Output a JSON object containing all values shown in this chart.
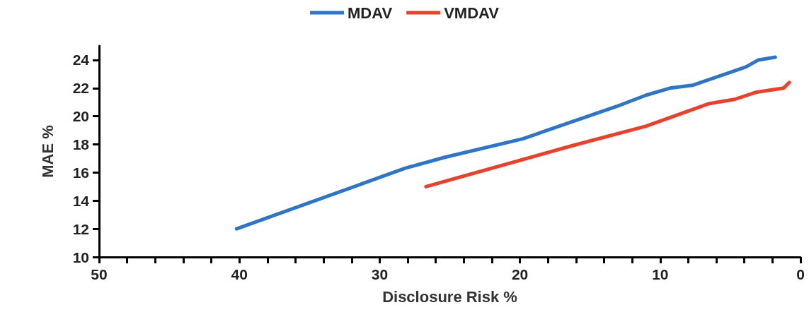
{
  "chart_data": {
    "type": "line",
    "xlabel": "Disclosure Risk %",
    "ylabel": "MAE %",
    "xlim": [
      50,
      0
    ],
    "ylim": [
      10,
      25
    ],
    "xticks": [
      50,
      {
        "value": 48,
        "label": null
      },
      {
        "value": 46,
        "label": null
      },
      {
        "value": 44,
        "label": null
      },
      {
        "value": 42,
        "label": null
      },
      40,
      {
        "value": 38,
        "label": null
      },
      {
        "value": 36,
        "label": null
      },
      {
        "value": 34,
        "label": null
      },
      {
        "value": 32,
        "label": null
      },
      30,
      {
        "value": 28,
        "label": null
      },
      {
        "value": 26,
        "label": null
      },
      {
        "value": 24,
        "label": null
      },
      {
        "value": 22,
        "label": null
      },
      20,
      {
        "value": 18,
        "label": null
      },
      {
        "value": 16,
        "label": null
      },
      {
        "value": 14,
        "label": null
      },
      {
        "value": 12,
        "label": null
      },
      10,
      {
        "value": 8,
        "label": null
      },
      {
        "value": 6,
        "label": null
      },
      {
        "value": 4,
        "label": null
      },
      {
        "value": 2,
        "label": null
      },
      0
    ],
    "yticks": [
      10,
      12,
      14,
      16,
      18,
      20,
      22,
      24
    ],
    "grid": false,
    "legend": "top",
    "marker": "none",
    "line_style": "solid",
    "series": [
      {
        "name": "MDAV",
        "color": "#2e75c6",
        "x": [
          40.2,
          28.2,
          25.3,
          19.8,
          13.1,
          11.0,
          9.3,
          7.7,
          3.9,
          3.0,
          1.8
        ],
        "values": [
          12.0,
          16.3,
          17.1,
          18.4,
          20.7,
          21.5,
          22.0,
          22.2,
          23.5,
          24.0,
          24.2
        ]
      },
      {
        "name": "VMDAV",
        "color": "#e8412c",
        "x": [
          26.7,
          16.3,
          11.0,
          6.5,
          4.7,
          3.2,
          1.2,
          0.8
        ],
        "values": [
          15.0,
          17.9,
          19.3,
          20.9,
          21.2,
          21.7,
          22.0,
          22.4
        ]
      }
    ]
  }
}
